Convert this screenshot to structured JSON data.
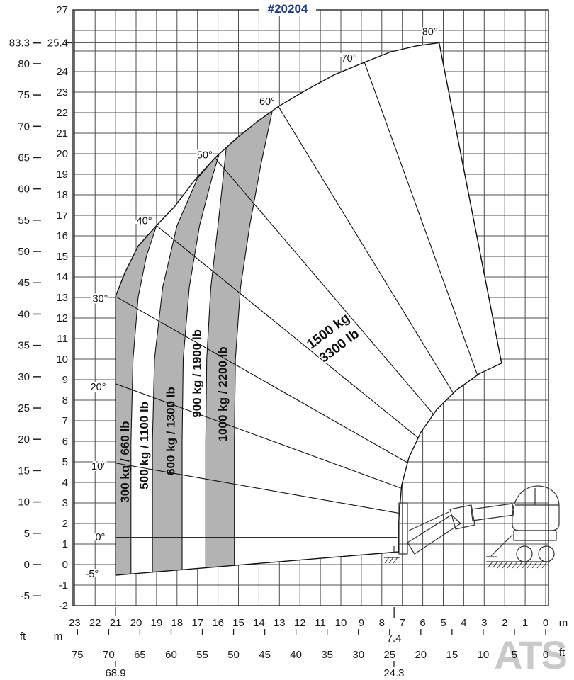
{
  "title_block": {
    "title": "#20204"
  },
  "watermark": "ATS",
  "units": {
    "left_ft": "ft",
    "left_m": "m",
    "bottom_m": "m",
    "bottom_ft": "ft"
  },
  "colors": {
    "title": "#1e3a8a",
    "zone_fill": "#b3b3b3",
    "grid": "#4d4d4d",
    "outline": "#111111",
    "text": "#1a1a1a",
    "watermark": "#c9c9c9"
  },
  "axes": {
    "left": {
      "m_ticks": [
        27,
        25.4,
        24,
        23,
        22,
        21,
        20,
        19,
        18,
        17,
        16,
        15,
        14,
        13,
        12,
        11,
        10,
        9,
        8,
        7,
        6,
        5,
        4,
        3,
        2,
        1,
        0,
        -1,
        -2
      ],
      "ft_ticks": [
        83.3,
        80,
        75,
        70,
        65,
        60,
        55,
        50,
        45,
        40,
        35,
        30,
        25,
        20,
        15,
        10,
        5,
        0,
        -5
      ]
    },
    "bottom": {
      "m_ticks": [
        23,
        22,
        21,
        20,
        19,
        18,
        17,
        16,
        15,
        14,
        13,
        12,
        11,
        10,
        9,
        8,
        7,
        6,
        5,
        4,
        3,
        2,
        1,
        0
      ],
      "ft_ticks": [
        75,
        70,
        65,
        60,
        55,
        50,
        45,
        40,
        35,
        30,
        25,
        20,
        15,
        10,
        5,
        0
      ],
      "max_reach_m_label": "21.0",
      "max_reach_ft_label": "68.9",
      "inner_reach_m_label": "7.4",
      "inner_reach_ft_label": "24.3"
    }
  },
  "chart_data": {
    "type": "load_chart",
    "title": "#20204",
    "xlabel_units": [
      "m",
      "ft"
    ],
    "ylabel_units": [
      "m",
      "ft"
    ],
    "x_range_m": [
      0,
      23
    ],
    "y_range_m": [
      -2,
      27
    ],
    "grid": true,
    "max_lift_height_m": 25.4,
    "max_lift_height_ft": 83.3,
    "max_forward_reach_m": 21.0,
    "max_forward_reach_ft": 68.9,
    "inner_boundary_reach_m": 7.4,
    "inner_boundary_reach_ft": 24.3,
    "boom_angles_deg": [
      -5,
      0,
      10,
      20,
      30,
      40,
      50,
      60,
      70,
      80
    ],
    "capacity_zones": [
      {
        "capacity_kg": 300,
        "capacity_lb": 660,
        "label": "300 kg / 660 lb",
        "shaded": true,
        "label_pos_m": [
          20.55,
          5.0
        ]
      },
      {
        "capacity_kg": 500,
        "capacity_lb": 1100,
        "label": "500 kg / 1100 lb",
        "shaded": false,
        "label_pos_m": [
          19.62,
          5.8
        ]
      },
      {
        "capacity_kg": 600,
        "capacity_lb": 1300,
        "label": "600 kg / 1300 lb",
        "shaded": true,
        "label_pos_m": [
          18.33,
          6.5
        ]
      },
      {
        "capacity_kg": 900,
        "capacity_lb": 1900,
        "label": "900 kg / 1900 lb",
        "shaded": false,
        "label_pos_m": [
          17.05,
          9.3
        ]
      },
      {
        "capacity_kg": 1000,
        "capacity_lb": 2200,
        "label": "1000 kg / 2200 lb",
        "shaded": true,
        "label_pos_m": [
          15.78,
          8.3
        ]
      },
      {
        "capacity_kg": 1500,
        "capacity_lb": 3300,
        "label_line1": "1500 kg",
        "label_line2": "3300 lb",
        "shaded": false,
        "label_pos_m": [
          10.35,
          11.0
        ],
        "label_rotation_deg": -37
      }
    ],
    "geometry": {
      "envelope_m": [
        [
          21,
          -0.52
        ],
        [
          21,
          13.05
        ],
        [
          20.55,
          14.2
        ],
        [
          19.9,
          15.5
        ],
        [
          19,
          16.5
        ],
        [
          18.1,
          17.45
        ],
        [
          17.15,
          18.7
        ],
        [
          16.15,
          19.8
        ],
        [
          15.1,
          20.75
        ],
        [
          14.1,
          21.55
        ],
        [
          13.05,
          22.3
        ],
        [
          11.7,
          23.1
        ],
        [
          10.3,
          23.85
        ],
        [
          8.85,
          24.45
        ],
        [
          7.6,
          24.95
        ],
        [
          6.3,
          25.25
        ],
        [
          5.2,
          25.4
        ],
        [
          2.15,
          9.8
        ],
        [
          3.22,
          9.3
        ],
        [
          4.35,
          8.5
        ],
        [
          5.31,
          7.55
        ],
        [
          6.1,
          6.43
        ],
        [
          6.68,
          5.19
        ],
        [
          7.03,
          3.86
        ],
        [
          7.15,
          2.5
        ],
        [
          7.18,
          1.9
        ],
        [
          7.18,
          0.62
        ]
      ],
      "zone_boundaries_m": [
        [
          [
            20.25,
            -0.458
          ],
          [
            20.25,
            6
          ],
          [
            20.15,
            10
          ],
          [
            19.9,
            13
          ],
          [
            19.5,
            15
          ],
          [
            19,
            16.5
          ]
        ],
        [
          [
            19.2,
            -0.372
          ],
          [
            19.2,
            6
          ],
          [
            19.1,
            10
          ],
          [
            18.7,
            13.5
          ],
          [
            18,
            16.5
          ],
          [
            17,
            18.8
          ],
          [
            16.15,
            19.8
          ]
        ],
        [
          [
            17.75,
            -0.252
          ],
          [
            17.75,
            6
          ],
          [
            17.7,
            10
          ],
          [
            17.4,
            13.5
          ],
          [
            16.9,
            16.5
          ],
          [
            16.3,
            18.8
          ],
          [
            15.95,
            19.95
          ]
        ],
        [
          [
            16.6,
            -0.157
          ],
          [
            16.6,
            6
          ],
          [
            16.55,
            10
          ],
          [
            16.35,
            13.5
          ],
          [
            16,
            16.5
          ],
          [
            15.75,
            18.8
          ],
          [
            15.6,
            20.3
          ]
        ],
        [
          [
            15.2,
            -0.042
          ],
          [
            15.2,
            6
          ],
          [
            15.15,
            10
          ],
          [
            14.9,
            13.5
          ],
          [
            14.45,
            16.5
          ],
          [
            13.9,
            19.5
          ],
          [
            13.35,
            22.08
          ]
        ]
      ],
      "shaded_polygons_m": [
        [
          [
            21,
            -0.52
          ],
          [
            21,
            13.05
          ],
          [
            20.55,
            14.2
          ],
          [
            19.9,
            15.5
          ],
          [
            19,
            16.5
          ],
          [
            19.5,
            15
          ],
          [
            19.9,
            13
          ],
          [
            20.15,
            10
          ],
          [
            20.25,
            6
          ],
          [
            20.25,
            -0.458
          ]
        ],
        [
          [
            19.2,
            -0.372
          ],
          [
            19.2,
            6
          ],
          [
            19.1,
            10
          ],
          [
            18.7,
            13.5
          ],
          [
            18,
            16.5
          ],
          [
            17,
            18.8
          ],
          [
            16.15,
            19.8
          ],
          [
            15.95,
            19.95
          ],
          [
            16.3,
            18.8
          ],
          [
            16.9,
            16.5
          ],
          [
            17.4,
            13.5
          ],
          [
            17.7,
            10
          ],
          [
            17.75,
            6
          ],
          [
            17.75,
            -0.252
          ]
        ],
        [
          [
            16.6,
            -0.157
          ],
          [
            16.6,
            6
          ],
          [
            16.55,
            10
          ],
          [
            16.35,
            13.5
          ],
          [
            16,
            16.5
          ],
          [
            15.75,
            18.8
          ],
          [
            15.6,
            20.3
          ],
          [
            15.1,
            20.75
          ],
          [
            14.1,
            21.55
          ],
          [
            13.35,
            22.08
          ],
          [
            13.9,
            19.5
          ],
          [
            14.45,
            16.5
          ],
          [
            14.9,
            13.5
          ],
          [
            15.15,
            10
          ],
          [
            15.2,
            6
          ],
          [
            15.2,
            -0.042
          ]
        ]
      ],
      "angle_lines": [
        {
          "label": "-5°",
          "label_pos_m": [
            22.15,
            -0.45
          ]
        },
        {
          "label": "0°",
          "from_m": [
            7.25,
            1.32
          ],
          "to_m": [
            21,
            1.32
          ],
          "label_pos_m": [
            21.75,
            1.35
          ]
        },
        {
          "label": "10°",
          "from_m": [
            7.1,
            2.49
          ],
          "to_m": [
            21,
            4.94
          ],
          "label_pos_m": [
            21.8,
            4.8
          ]
        },
        {
          "label": "20°",
          "from_m": [
            7.06,
            3.72
          ],
          "to_m": [
            21,
            8.8
          ],
          "label_pos_m": [
            21.85,
            8.65
          ]
        },
        {
          "label": "30°",
          "from_m": [
            6.75,
            4.96
          ],
          "to_m": [
            21,
            13.05
          ],
          "label_pos_m": [
            21.75,
            12.95
          ]
        },
        {
          "label": "40°",
          "from_m": [
            6.23,
            6.17
          ],
          "to_m": [
            19,
            16.5
          ],
          "label_pos_m": [
            19.6,
            16.75
          ]
        },
        {
          "label": "50°",
          "from_m": [
            5.49,
            7.33
          ],
          "to_m": [
            16.15,
            19.8
          ],
          "label_pos_m": [
            16.65,
            19.95
          ]
        },
        {
          "label": "60°",
          "from_m": [
            4.52,
            8.36
          ],
          "to_m": [
            13.05,
            22.3
          ],
          "label_pos_m": [
            13.6,
            22.55
          ]
        },
        {
          "label": "70°",
          "from_m": [
            3.33,
            9.22
          ],
          "to_m": [
            8.85,
            24.45
          ],
          "label_pos_m": [
            9.6,
            24.65
          ]
        },
        {
          "label": "80°",
          "from_m": [
            2.15,
            9.8
          ],
          "to_m": [
            5.2,
            25.4
          ],
          "label_pos_m": [
            5.65,
            25.95
          ]
        }
      ]
    }
  }
}
